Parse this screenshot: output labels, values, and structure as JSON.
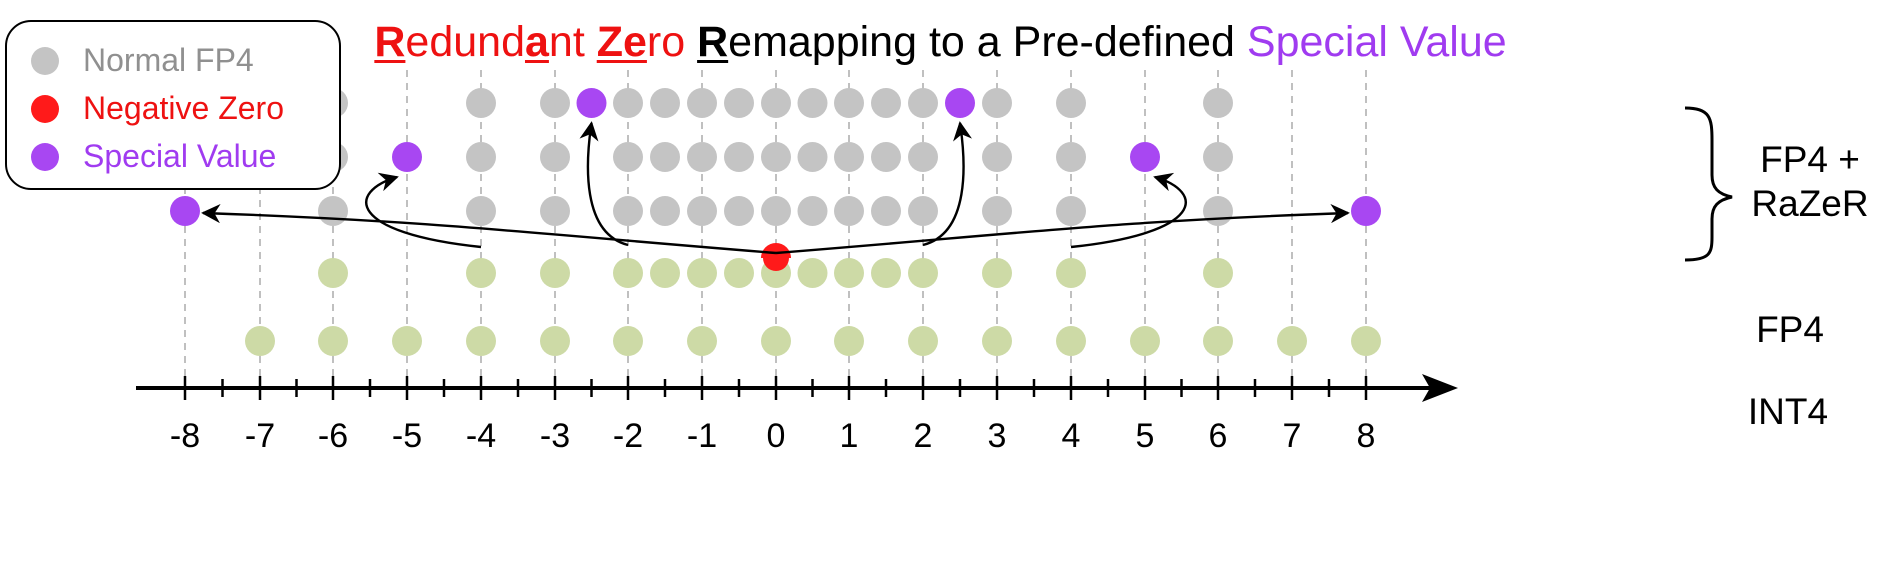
{
  "title": {
    "parts": [
      {
        "text": "R",
        "style": "red-caps"
      },
      {
        "text": "edund",
        "style": "red"
      },
      {
        "text": "a",
        "style": "red-caps"
      },
      {
        "text": "nt ",
        "style": "red"
      },
      {
        "text": "Ze",
        "style": "red-caps"
      },
      {
        "text": "ro ",
        "style": "red"
      },
      {
        "text": "R",
        "style": "black-caps"
      },
      {
        "text": "emapping to a Pre-defined ",
        "style": "black"
      },
      {
        "text": "Special Value",
        "style": "purple"
      }
    ]
  },
  "colors": {
    "normal": "#c4c4c4",
    "negative_zero": "#ff1a1a",
    "special": "#a847f2",
    "green": "#cddaa6",
    "title_red": "#ee1111",
    "title_purple": "#a03bf0",
    "grid": "#b0b0b0"
  },
  "legend": [
    {
      "label": "Normal FP4",
      "color": "#c4c4c4",
      "text_color": "#909090"
    },
    {
      "label": "Negative Zero",
      "color": "#ff1a1a",
      "text_color": "#ee1111"
    },
    {
      "label": "Special Value",
      "color": "#a847f2",
      "text_color": "#a03bf0"
    }
  ],
  "axis": {
    "ticks": [
      -8,
      -7,
      -6,
      -5,
      -4,
      -3,
      -2,
      -1,
      0,
      1,
      2,
      3,
      4,
      5,
      6,
      7,
      8
    ],
    "labels": [
      "-8",
      "-7",
      "-6",
      "-5",
      "-4",
      "-3",
      "-2",
      "-1",
      "0",
      "1",
      "2",
      "3",
      "4",
      "5",
      "6",
      "7",
      "8"
    ]
  },
  "fp4_values": [
    -6,
    -4,
    -3,
    -2,
    -1.5,
    -1,
    -0.5,
    0,
    0.5,
    1,
    1.5,
    2,
    3,
    4,
    6
  ],
  "int4_values": [
    -7,
    -6,
    -5,
    -4,
    -3,
    -2,
    -1,
    0,
    1,
    2,
    3,
    4,
    5,
    6,
    7,
    8
  ],
  "razer_rows": [
    {
      "normal": [
        -6,
        -4,
        -3,
        -2,
        -1.5,
        -1,
        -0.5,
        0,
        0.5,
        1,
        1.5,
        2,
        3,
        4,
        6
      ],
      "special": [
        -2.5,
        2.5
      ]
    },
    {
      "normal": [
        -6,
        -4,
        -3,
        -2,
        -1.5,
        -1,
        -0.5,
        0,
        0.5,
        1,
        1.5,
        2,
        3,
        4,
        6
      ],
      "special": [
        -5,
        5
      ]
    },
    {
      "normal": [
        -6,
        -4,
        -3,
        -2,
        -1.5,
        -1,
        -0.5,
        0,
        0.5,
        1,
        1.5,
        2,
        3,
        4,
        6
      ],
      "special": [
        -8,
        8
      ]
    }
  ],
  "negative_zero_value": 0,
  "row_labels": {
    "razer_line1": "FP4 +",
    "razer_line2": "RaZeR",
    "fp4": "FP4",
    "int4": "INT4"
  }
}
